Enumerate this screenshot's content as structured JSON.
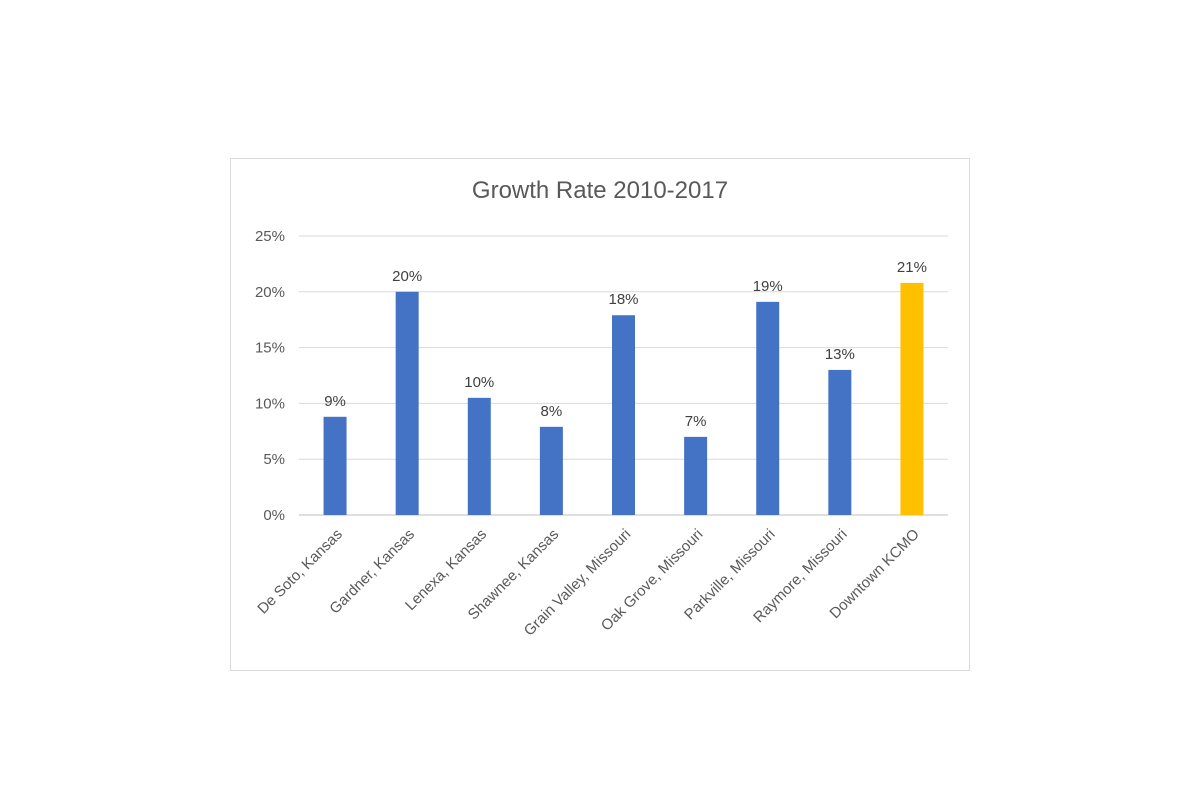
{
  "chart_data": {
    "type": "bar",
    "title": "Growth Rate 2010-2017",
    "xlabel": "",
    "ylabel": "",
    "ylim": [
      0,
      0.25
    ],
    "yticks": [
      0,
      0.05,
      0.1,
      0.15,
      0.2,
      0.25
    ],
    "ytick_labels": [
      "0%",
      "5%",
      "10%",
      "15%",
      "20%",
      "25%"
    ],
    "grid": true,
    "legend": "none",
    "categories": [
      "De Soto, Kansas",
      "Gardner, Kansas",
      "Lenexa, Kansas",
      "Shawnee, Kansas",
      "Grain Valley, Missouri",
      "Oak Grove, Missouri",
      "Parkville, Missouri",
      "Raymore, Missouri",
      "Downtown KCMO"
    ],
    "values": [
      0.088,
      0.2,
      0.105,
      0.079,
      0.179,
      0.07,
      0.191,
      0.13,
      0.208
    ],
    "data_labels": [
      "9%",
      "20%",
      "10%",
      "8%",
      "18%",
      "7%",
      "19%",
      "13%",
      "21%"
    ],
    "bar_color": "#4472c4",
    "highlight_color": "#ffc000",
    "highlight_index": 8
  }
}
